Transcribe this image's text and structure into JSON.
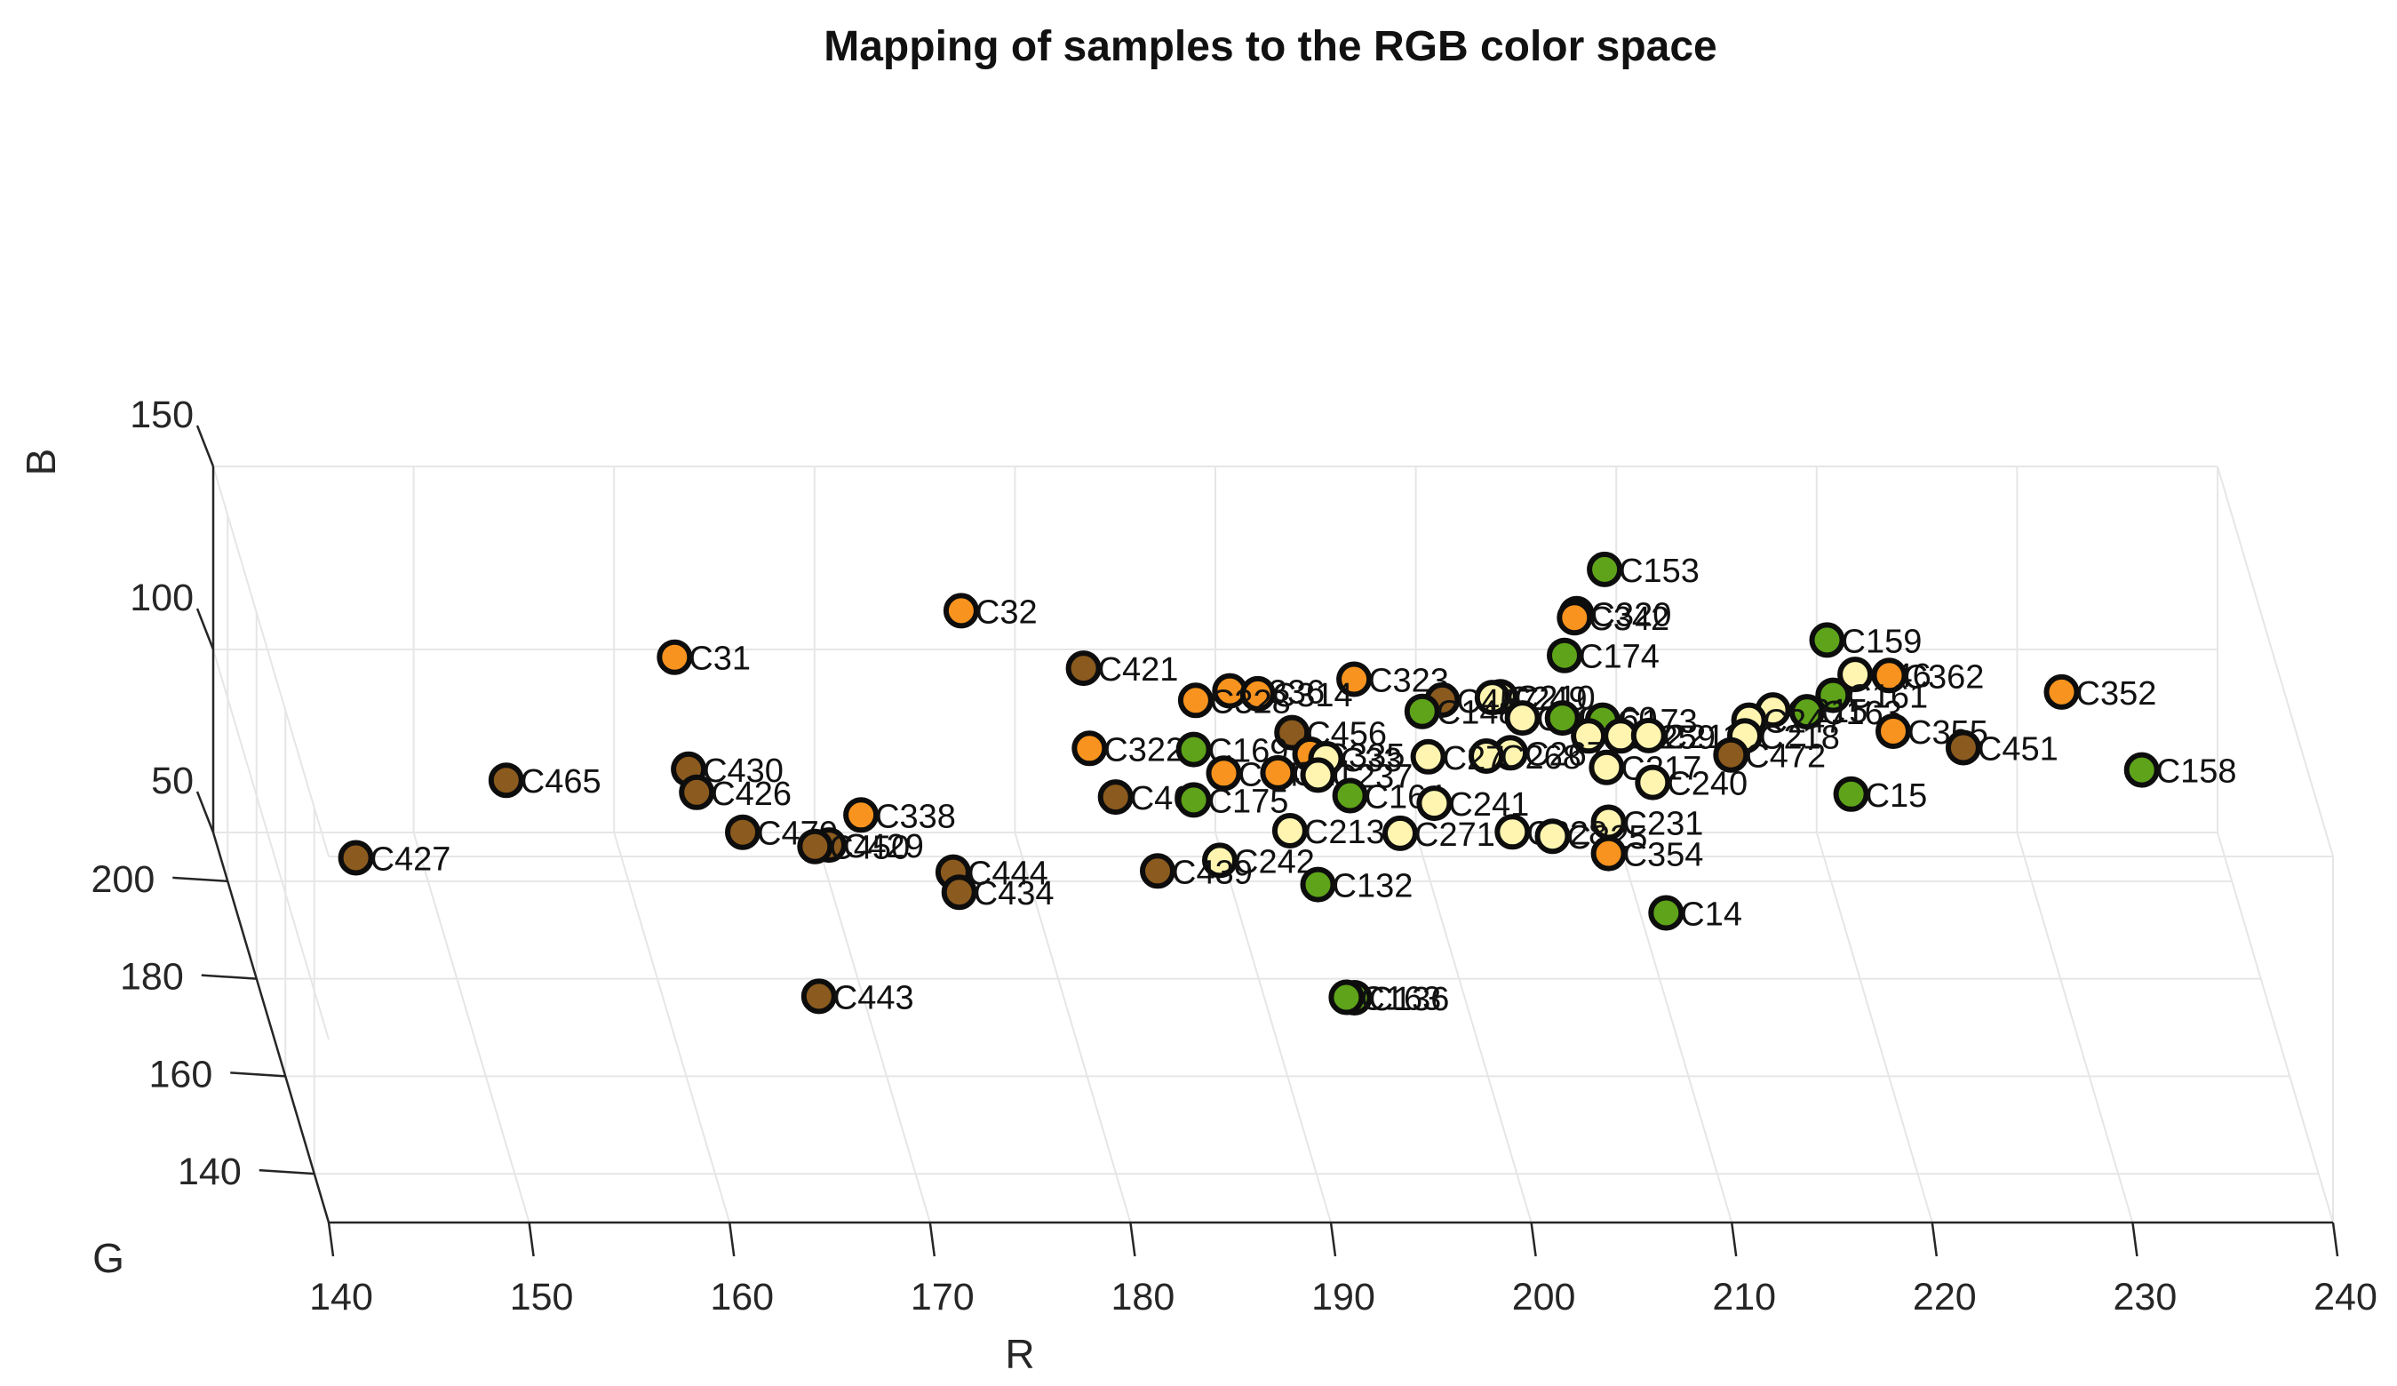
{
  "chart_data": {
    "type": "scatter3d",
    "title": "Mapping of samples to the RGB color space",
    "xlabel": "R",
    "ylabel": "G",
    "zlabel": "B",
    "xlim": [
      140,
      240
    ],
    "ylim": [
      130,
      210
    ],
    "zlim": [
      50,
      150
    ],
    "xticks": [
      140,
      150,
      160,
      170,
      180,
      190,
      200,
      210,
      220,
      230,
      240
    ],
    "yticks": [
      140,
      160,
      180,
      200
    ],
    "zticks": [
      50,
      100,
      150
    ],
    "grid": true,
    "colors": {
      "orange": "#f7931e",
      "brown": "#8b5a1e",
      "green": "#5ea31a",
      "yellow": "#fff5b0"
    },
    "points": [
      {
        "label": "C153",
        "R": 208.7,
        "G": 200,
        "B": 135.2,
        "color": "green"
      },
      {
        "label": "C32",
        "R": 176.6,
        "G": 200,
        "B": 123.9,
        "color": "orange"
      },
      {
        "label": "C320",
        "R": 207.3,
        "G": 200,
        "B": 123.1,
        "color": "orange"
      },
      {
        "label": "C342",
        "R": 207.2,
        "G": 200,
        "B": 122.0,
        "color": "orange"
      },
      {
        "label": "C159",
        "R": 219.8,
        "G": 200,
        "B": 115.9,
        "color": "green"
      },
      {
        "label": "C31",
        "R": 162.3,
        "G": 200,
        "B": 111.2,
        "color": "orange"
      },
      {
        "label": "C174",
        "R": 206.7,
        "G": 200,
        "B": 111.7,
        "color": "green"
      },
      {
        "label": "C421",
        "R": 182.7,
        "G": 200,
        "B": 108.2,
        "color": "brown"
      },
      {
        "label": "C46",
        "R": 221.2,
        "G": 200,
        "B": 106.5,
        "color": "yellow"
      },
      {
        "label": "C362",
        "R": 222.9,
        "G": 200,
        "B": 106.2,
        "color": "orange"
      },
      {
        "label": "C323",
        "R": 196.2,
        "G": 200,
        "B": 105.2,
        "color": "orange"
      },
      {
        "label": "C352",
        "R": 231.5,
        "G": 200,
        "B": 101.7,
        "color": "orange"
      },
      {
        "label": "C336",
        "R": 190.0,
        "G": 200,
        "B": 102.0,
        "color": "orange"
      },
      {
        "label": "C314",
        "R": 191.4,
        "G": 200,
        "B": 101.2,
        "color": "orange"
      },
      {
        "label": "C161",
        "R": 220.1,
        "G": 200,
        "B": 100.8,
        "color": "green"
      },
      {
        "label": "C210",
        "R": 203.5,
        "G": 200,
        "B": 100.4,
        "color": "yellow"
      },
      {
        "label": "C249",
        "R": 203.1,
        "G": 200,
        "B": 100.2,
        "color": "yellow"
      },
      {
        "label": "C457",
        "R": 200.6,
        "G": 200,
        "B": 99.5,
        "color": "brown"
      },
      {
        "label": "C328",
        "R": 188.3,
        "G": 200,
        "B": 99.4,
        "color": "orange"
      },
      {
        "label": "C215",
        "R": 217.1,
        "G": 200,
        "B": 96.8,
        "color": "yellow"
      },
      {
        "label": "C163",
        "R": 218.8,
        "G": 200,
        "B": 96.3,
        "color": "green"
      },
      {
        "label": "C148",
        "R": 199.6,
        "G": 200,
        "B": 96.4,
        "color": "green"
      },
      {
        "label": "C201",
        "R": 204.6,
        "G": 200,
        "B": 94.6,
        "color": "yellow"
      },
      {
        "label": "C160",
        "R": 206.6,
        "G": 200,
        "B": 94.6,
        "color": "green"
      },
      {
        "label": "C173",
        "R": 208.6,
        "G": 200,
        "B": 94.0,
        "color": "green"
      },
      {
        "label": "C247",
        "R": 215.9,
        "G": 200,
        "B": 94.0,
        "color": "yellow"
      },
      {
        "label": "C355",
        "R": 223.1,
        "G": 200,
        "B": 91.0,
        "color": "orange"
      },
      {
        "label": "C456",
        "R": 193.1,
        "G": 200,
        "B": 90.6,
        "color": "brown"
      },
      {
        "label": "C212",
        "R": 207.9,
        "G": 200,
        "B": 89.7,
        "color": "yellow"
      },
      {
        "label": "C259",
        "R": 209.5,
        "G": 200,
        "B": 89.7,
        "color": "yellow"
      },
      {
        "label": "C211",
        "R": 210.9,
        "G": 200,
        "B": 89.8,
        "color": "yellow"
      },
      {
        "label": "C218",
        "R": 215.7,
        "G": 200,
        "B": 89.7,
        "color": "yellow"
      },
      {
        "label": "C322",
        "R": 183.0,
        "G": 200,
        "B": 86.3,
        "color": "orange"
      },
      {
        "label": "C169",
        "R": 188.2,
        "G": 200,
        "B": 86.0,
        "color": "green"
      },
      {
        "label": "C451",
        "R": 226.6,
        "G": 200,
        "B": 86.5,
        "color": "brown"
      },
      {
        "label": "C472",
        "R": 215.0,
        "G": 200,
        "B": 84.5,
        "color": "brown"
      },
      {
        "label": "C335",
        "R": 194.0,
        "G": 200,
        "B": 84.7,
        "color": "orange"
      },
      {
        "label": "C267",
        "R": 204.0,
        "G": 200,
        "B": 85.1,
        "color": "yellow"
      },
      {
        "label": "C268",
        "R": 202.8,
        "G": 200,
        "B": 84.2,
        "color": "yellow"
      },
      {
        "label": "C27",
        "R": 199.9,
        "G": 200,
        "B": 84.0,
        "color": "yellow"
      },
      {
        "label": "C33",
        "R": 194.8,
        "G": 200,
        "B": 83.5,
        "color": "yellow"
      },
      {
        "label": "C158",
        "R": 235.5,
        "G": 200,
        "B": 80.4,
        "color": "green"
      },
      {
        "label": "C217",
        "R": 208.8,
        "G": 200,
        "B": 81.1,
        "color": "yellow"
      },
      {
        "label": "C34",
        "R": 189.7,
        "G": 200,
        "B": 79.5,
        "color": "orange"
      },
      {
        "label": "C21",
        "R": 192.4,
        "G": 200,
        "B": 79.6,
        "color": "orange"
      },
      {
        "label": "C237",
        "R": 194.4,
        "G": 200,
        "B": 79.0,
        "color": "yellow"
      },
      {
        "label": "C240",
        "R": 211.1,
        "G": 200,
        "B": 77.0,
        "color": "yellow"
      },
      {
        "label": "C430",
        "R": 163.0,
        "G": 200,
        "B": 80.6,
        "color": "brown"
      },
      {
        "label": "C465",
        "R": 153.9,
        "G": 200,
        "B": 77.6,
        "color": "brown"
      },
      {
        "label": "C426",
        "R": 163.4,
        "G": 200,
        "B": 74.3,
        "color": "brown"
      },
      {
        "label": "C461",
        "R": 184.3,
        "G": 200,
        "B": 73.0,
        "color": "brown"
      },
      {
        "label": "C175",
        "R": 188.2,
        "G": 200,
        "B": 72.2,
        "color": "green"
      },
      {
        "label": "C164",
        "R": 196.0,
        "G": 200,
        "B": 73.4,
        "color": "green"
      },
      {
        "label": "C15",
        "R": 221.0,
        "G": 200,
        "B": 73.8,
        "color": "green"
      },
      {
        "label": "C241",
        "R": 200.2,
        "G": 200,
        "B": 71.3,
        "color": "yellow"
      },
      {
        "label": "C338",
        "R": 171.6,
        "G": 200,
        "B": 68.1,
        "color": "orange"
      },
      {
        "label": "C231",
        "R": 208.9,
        "G": 200,
        "B": 66.1,
        "color": "yellow"
      },
      {
        "label": "C470",
        "R": 165.7,
        "G": 200,
        "B": 63.4,
        "color": "brown"
      },
      {
        "label": "C213",
        "R": 193.0,
        "G": 200,
        "B": 63.8,
        "color": "yellow"
      },
      {
        "label": "C271",
        "R": 198.5,
        "G": 200,
        "B": 63.1,
        "color": "yellow"
      },
      {
        "label": "C228",
        "R": 204.1,
        "G": 200,
        "B": 63.5,
        "color": "yellow"
      },
      {
        "label": "C225",
        "R": 206.1,
        "G": 200,
        "B": 62.3,
        "color": "yellow"
      },
      {
        "label": "C429",
        "R": 170.0,
        "G": 200,
        "B": 59.9,
        "color": "brown"
      },
      {
        "label": "C450",
        "R": 169.3,
        "G": 200,
        "B": 59.5,
        "color": "brown"
      },
      {
        "label": "C354",
        "R": 208.9,
        "G": 200,
        "B": 57.6,
        "color": "orange"
      },
      {
        "label": "C427",
        "R": 146.4,
        "G": 200,
        "B": 56.4,
        "color": "brown"
      },
      {
        "label": "C242",
        "R": 189.5,
        "G": 200,
        "B": 55.7,
        "color": "yellow"
      },
      {
        "label": "C444",
        "R": 176.2,
        "G": 200,
        "B": 52.5,
        "color": "brown"
      },
      {
        "label": "C439",
        "R": 186.4,
        "G": 200,
        "B": 52.8,
        "color": "brown"
      },
      {
        "label": "C132",
        "R": 194.4,
        "G": 200,
        "B": 49.1,
        "color": "green"
      },
      {
        "label": "C434",
        "R": 176.5,
        "G": 200,
        "B": 47.0,
        "color": "brown"
      },
      {
        "label": "C14",
        "R": 211.3,
        "G": 193.5,
        "B": 50,
        "color": "green"
      },
      {
        "label": "C443",
        "R": 167.8,
        "G": 176.4,
        "B": 50,
        "color": "brown"
      },
      {
        "label": "C136",
        "R": 194.5,
        "G": 176.1,
        "B": 50,
        "color": "green"
      },
      {
        "label": "C163",
        "R": 194.1,
        "G": 176.2,
        "B": 50,
        "color": "green"
      }
    ]
  }
}
